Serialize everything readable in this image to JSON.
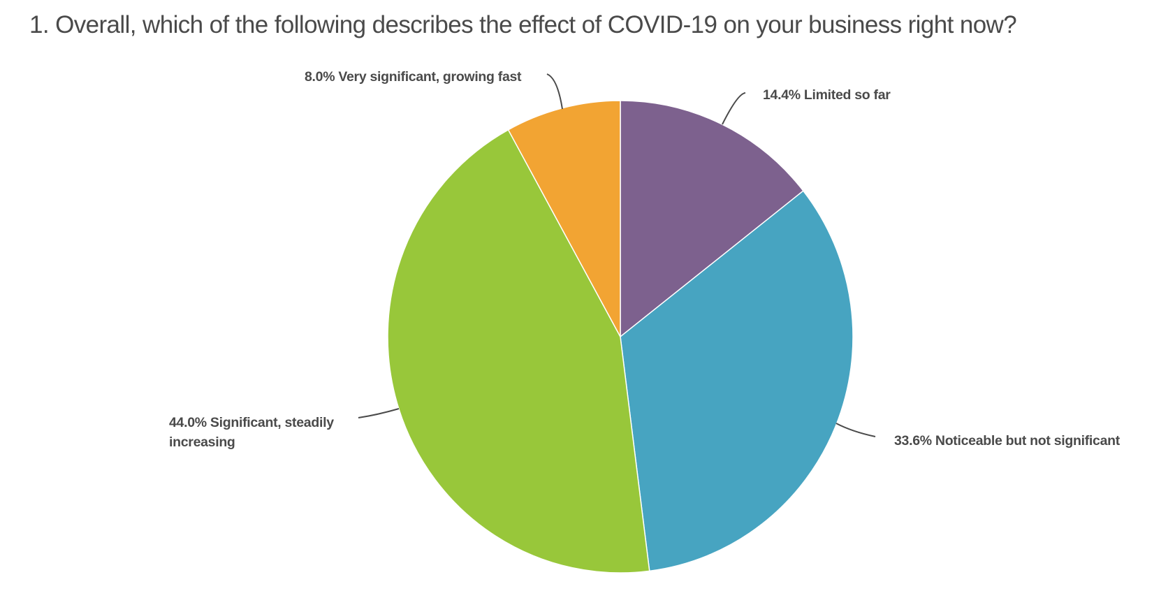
{
  "page": {
    "title": "1. Overall, which of the following describes the effect of COVID-19 on your business right now?"
  },
  "chart_data": {
    "type": "pie",
    "title": "1. Overall, which of the following describes the effect of COVID-19 on your business right now?",
    "start_angle_deg": 0,
    "direction": "clockwise",
    "slices": [
      {
        "label": "Limited so far",
        "value": 14.4,
        "display": "14.4% Limited so far",
        "color": "#7d618e"
      },
      {
        "label": "Noticeable but not significant",
        "value": 33.6,
        "display": "33.6% Noticeable but not significant",
        "color": "#47a4c1"
      },
      {
        "label": "Significant, steadily increasing",
        "value": 44.0,
        "display_line1": "44.0% Significant, steadily",
        "display_line2": "increasing",
        "color": "#98c73a"
      },
      {
        "label": "Very significant, growing fast",
        "value": 8.0,
        "display": "8.0% Very significant, growing fast",
        "color": "#f2a433"
      }
    ],
    "legend": "none (data labels with leader lines)",
    "units": "%"
  },
  "labels": {
    "limited": "14.4% Limited so far",
    "noticeable": "33.6% Noticeable but not significant",
    "significant_l1": "44.0% Significant, steadily",
    "significant_l2": "increasing",
    "very_significant": "8.0% Very significant, growing fast"
  }
}
